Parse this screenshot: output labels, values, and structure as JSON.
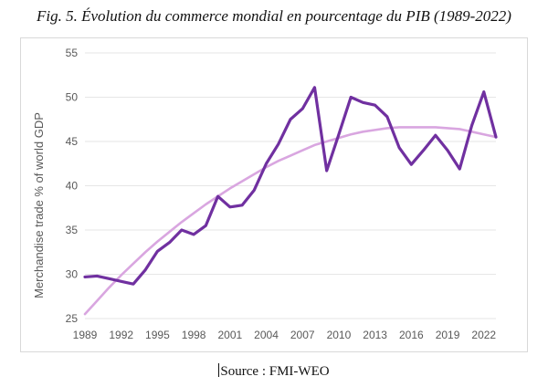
{
  "figure": {
    "title": "Fig. 5. Évolution du commerce mondial en pourcentage du PIB (1989-2022)",
    "source": "Source : FMI-WEO"
  },
  "chart_data": {
    "type": "line",
    "title": "",
    "xlabel": "",
    "ylabel": "Merchandise trade % of world GDP",
    "ylim": [
      25,
      55
    ],
    "yticks": [
      25,
      30,
      35,
      40,
      45,
      50,
      55
    ],
    "xlim": [
      1989,
      2023
    ],
    "xticks": [
      1989,
      1992,
      1995,
      1998,
      2001,
      2004,
      2007,
      2010,
      2013,
      2016,
      2019,
      2022
    ],
    "grid": true,
    "legend": "none",
    "series": [
      {
        "color": "#7030a0",
        "x": [
          1989,
          1990,
          1991,
          1992,
          1993,
          1994,
          1995,
          1996,
          1997,
          1998,
          1999,
          2000,
          2001,
          2002,
          2003,
          2004,
          2005,
          2006,
          2007,
          2008,
          2009,
          2010,
          2011,
          2012,
          2013,
          2014,
          2015,
          2016,
          2017,
          2018,
          2019,
          2020,
          2021,
          2022,
          2023
        ],
        "values": [
          29.7,
          29.8,
          29.5,
          29.2,
          28.9,
          30.5,
          32.6,
          33.6,
          35.0,
          34.5,
          35.5,
          38.8,
          37.6,
          37.8,
          39.5,
          42.5,
          44.7,
          47.5,
          48.7,
          51.1,
          41.7,
          45.8,
          50.0,
          49.4,
          49.1,
          47.8,
          44.3,
          42.4,
          44.0,
          45.7,
          44.0,
          41.9,
          46.8,
          50.6,
          45.5
        ]
      },
      {
        "color": "#d9a6e0",
        "x": [
          1989,
          1990,
          1991,
          1992,
          1993,
          1994,
          1995,
          1996,
          1997,
          1998,
          1999,
          2000,
          2001,
          2002,
          2003,
          2004,
          2005,
          2006,
          2007,
          2008,
          2009,
          2010,
          2011,
          2012,
          2013,
          2014,
          2015,
          2016,
          2017,
          2018,
          2019,
          2020,
          2021,
          2022,
          2023
        ],
        "values": [
          25.5,
          27.0,
          28.5,
          29.9,
          31.2,
          32.5,
          33.7,
          34.8,
          35.9,
          36.9,
          37.9,
          38.8,
          39.7,
          40.5,
          41.3,
          42.1,
          42.8,
          43.4,
          44.0,
          44.6,
          45.0,
          45.4,
          45.8,
          46.1,
          46.3,
          46.5,
          46.6,
          46.6,
          46.6,
          46.6,
          46.5,
          46.4,
          46.1,
          45.8,
          45.5
        ]
      }
    ]
  }
}
